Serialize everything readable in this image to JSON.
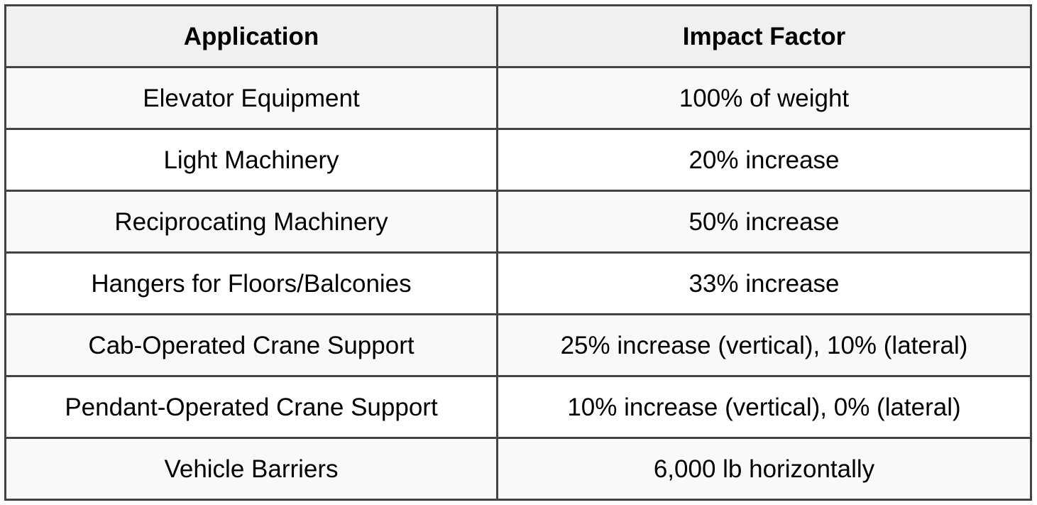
{
  "table": {
    "headers": [
      "Application",
      "Impact Factor"
    ],
    "rows": [
      {
        "application": "Elevator Equipment",
        "impact_factor": "100% of weight"
      },
      {
        "application": "Light Machinery",
        "impact_factor": "20% increase"
      },
      {
        "application": "Reciprocating Machinery",
        "impact_factor": "50% increase"
      },
      {
        "application": "Hangers for Floors/Balconies",
        "impact_factor": "33% increase"
      },
      {
        "application": "Cab-Operated Crane Support",
        "impact_factor": "25% increase (vertical), 10% (lateral)"
      },
      {
        "application": "Pendant-Operated Crane Support",
        "impact_factor": "10% increase (vertical), 0% (lateral)"
      },
      {
        "application": "Vehicle Barriers",
        "impact_factor": "6,000 lb horizontally"
      }
    ]
  },
  "colors": {
    "border": "#444444",
    "header_bg": "#f0f0f0",
    "row_alt_bg": "#f9f9f9",
    "row_bg": "#ffffff",
    "text": "#000000"
  }
}
